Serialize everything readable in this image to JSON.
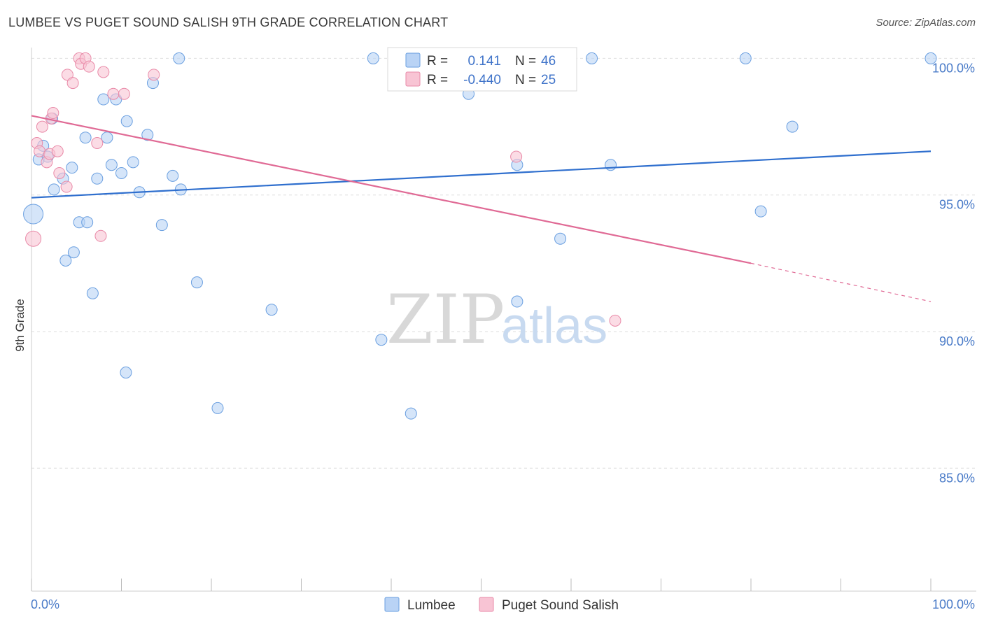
{
  "header": {
    "title": "LUMBEE VS PUGET SOUND SALISH 9TH GRADE CORRELATION CHART",
    "source": "Source: ZipAtlas.com"
  },
  "watermark": {
    "zip": "ZIP",
    "atlas": "atlas"
  },
  "colors": {
    "blue_fill": "#b9d3f5",
    "blue_stroke": "#6a9fe0",
    "blue_line": "#2f6fce",
    "pink_fill": "#f8c4d4",
    "pink_stroke": "#e98aa8",
    "pink_line": "#e06a95",
    "tick_text": "#4a7bc8",
    "grid": "#dedede"
  },
  "legend": {
    "rows": [
      {
        "r_label": "R =",
        "r_value": "0.141",
        "n_label": "N =",
        "n_value": "46",
        "series": "blue"
      },
      {
        "r_label": "R =",
        "r_value": "-0.440",
        "n_label": "N =",
        "n_value": "25",
        "series": "pink"
      }
    ]
  },
  "bottom_legend": {
    "items": [
      "Lumbee",
      "Puget Sound Salish"
    ]
  },
  "chart_data": {
    "type": "scatter",
    "title": "LUMBEE VS PUGET SOUND SALISH 9TH GRADE CORRELATION CHART",
    "xlabel": "",
    "ylabel": "9th Grade",
    "xlim": [
      0,
      100
    ],
    "ylim": [
      80.5,
      100.6
    ],
    "x_tick_labels": [
      "0.0%",
      "100.0%"
    ],
    "y_ticks": [
      85,
      90,
      95,
      100
    ],
    "y_tick_labels": [
      "85.0%",
      "90.0%",
      "95.0%",
      "100.0%"
    ],
    "grid": true,
    "series": [
      {
        "name": "Lumbee",
        "color": "#6a9fe0",
        "points": [
          [
            0.2,
            94.3,
            28
          ],
          [
            0.8,
            96.3,
            16
          ],
          [
            1.3,
            96.8,
            16
          ],
          [
            1.8,
            96.4,
            16
          ],
          [
            2.3,
            97.8,
            16
          ],
          [
            2.5,
            95.2,
            16
          ],
          [
            3.5,
            95.6,
            16
          ],
          [
            4.5,
            96.0,
            16
          ],
          [
            3.8,
            92.6,
            16
          ],
          [
            4.7,
            92.9,
            16
          ],
          [
            5.3,
            94.0,
            16
          ],
          [
            6.0,
            97.1,
            16
          ],
          [
            6.2,
            94.0,
            16
          ],
          [
            6.8,
            91.4,
            16
          ],
          [
            7.3,
            95.6,
            16
          ],
          [
            8.0,
            98.5,
            16
          ],
          [
            8.4,
            97.1,
            16
          ],
          [
            8.9,
            96.1,
            16
          ],
          [
            9.4,
            98.5,
            16
          ],
          [
            10.0,
            95.8,
            16
          ],
          [
            10.6,
            97.7,
            16
          ],
          [
            10.5,
            88.5,
            16
          ],
          [
            11.3,
            96.2,
            16
          ],
          [
            12.0,
            95.1,
            16
          ],
          [
            12.9,
            97.2,
            16
          ],
          [
            13.5,
            99.1,
            16
          ],
          [
            14.5,
            93.9,
            16
          ],
          [
            15.7,
            95.7,
            16
          ],
          [
            16.4,
            100.0,
            16
          ],
          [
            16.6,
            95.2,
            16
          ],
          [
            18.4,
            91.8,
            16
          ],
          [
            20.7,
            87.2,
            16
          ],
          [
            26.7,
            90.8,
            16
          ],
          [
            38.0,
            100.0,
            16
          ],
          [
            38.9,
            89.7,
            16
          ],
          [
            42.2,
            87.0,
            16
          ],
          [
            48.6,
            98.7,
            16
          ],
          [
            54.0,
            96.1,
            16
          ],
          [
            54.0,
            91.1,
            16
          ],
          [
            58.8,
            93.4,
            16
          ],
          [
            62.3,
            100.0,
            16
          ],
          [
            64.4,
            96.1,
            16
          ],
          [
            79.4,
            100.0,
            16
          ],
          [
            81.1,
            94.4,
            16
          ],
          [
            84.6,
            97.5,
            16
          ],
          [
            100.0,
            100.0,
            16
          ]
        ],
        "trend": {
          "x": [
            0,
            100
          ],
          "y": [
            94.9,
            96.6
          ],
          "style": "solid"
        }
      },
      {
        "name": "Puget Sound Salish",
        "color": "#e98aa8",
        "points": [
          [
            0.2,
            93.4,
            22
          ],
          [
            0.6,
            96.9,
            16
          ],
          [
            0.9,
            96.6,
            16
          ],
          [
            1.2,
            97.5,
            16
          ],
          [
            1.7,
            96.2,
            16
          ],
          [
            2.0,
            96.5,
            16
          ],
          [
            2.2,
            97.8,
            16
          ],
          [
            2.4,
            98.0,
            16
          ],
          [
            2.9,
            96.6,
            16
          ],
          [
            3.1,
            95.8,
            16
          ],
          [
            3.9,
            95.3,
            16
          ],
          [
            4.0,
            99.4,
            16
          ],
          [
            4.6,
            99.1,
            16
          ],
          [
            5.3,
            100.0,
            16
          ],
          [
            5.5,
            99.8,
            16
          ],
          [
            6.0,
            100.0,
            16
          ],
          [
            6.4,
            99.7,
            16
          ],
          [
            7.3,
            96.9,
            16
          ],
          [
            7.7,
            93.5,
            16
          ],
          [
            8.0,
            99.5,
            16
          ],
          [
            9.1,
            98.7,
            16
          ],
          [
            10.3,
            98.7,
            16
          ],
          [
            13.6,
            99.4,
            16
          ],
          [
            53.9,
            96.4,
            16
          ],
          [
            64.9,
            90.4,
            16
          ]
        ],
        "trend": {
          "x": [
            0,
            80
          ],
          "y": [
            97.9,
            92.5
          ],
          "style": "solid",
          "dashed_extension": {
            "x": [
              80,
              100
            ],
            "y": [
              92.5,
              91.1
            ]
          }
        }
      }
    ]
  }
}
